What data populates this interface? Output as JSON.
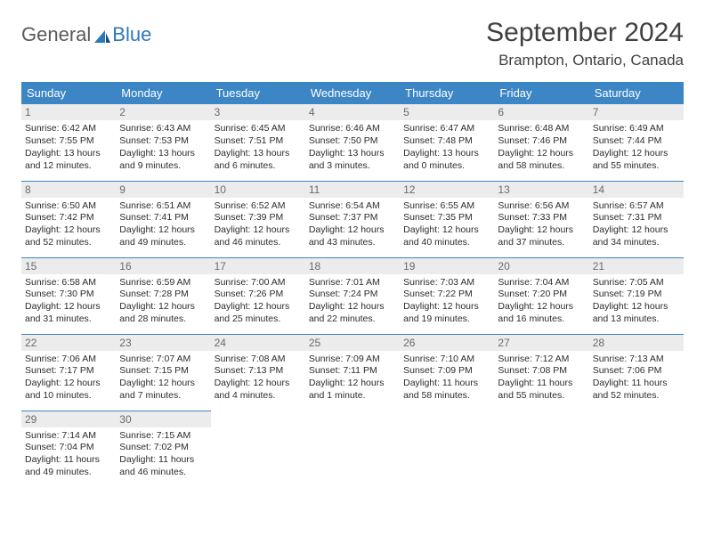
{
  "logo": {
    "text_general": "General",
    "text_blue": "Blue"
  },
  "title": "September 2024",
  "location": "Brampton, Ontario, Canada",
  "colors": {
    "header_bg": "#3d86c6",
    "header_text": "#ffffff",
    "daynum_bg": "#ececec",
    "logo_blue": "#2d78b8",
    "border": "#3d86c6"
  },
  "weekdays": [
    "Sunday",
    "Monday",
    "Tuesday",
    "Wednesday",
    "Thursday",
    "Friday",
    "Saturday"
  ],
  "weeks": [
    [
      {
        "day": "1",
        "sunrise": "Sunrise: 6:42 AM",
        "sunset": "Sunset: 7:55 PM",
        "daylight1": "Daylight: 13 hours",
        "daylight2": "and 12 minutes."
      },
      {
        "day": "2",
        "sunrise": "Sunrise: 6:43 AM",
        "sunset": "Sunset: 7:53 PM",
        "daylight1": "Daylight: 13 hours",
        "daylight2": "and 9 minutes."
      },
      {
        "day": "3",
        "sunrise": "Sunrise: 6:45 AM",
        "sunset": "Sunset: 7:51 PM",
        "daylight1": "Daylight: 13 hours",
        "daylight2": "and 6 minutes."
      },
      {
        "day": "4",
        "sunrise": "Sunrise: 6:46 AM",
        "sunset": "Sunset: 7:50 PM",
        "daylight1": "Daylight: 13 hours",
        "daylight2": "and 3 minutes."
      },
      {
        "day": "5",
        "sunrise": "Sunrise: 6:47 AM",
        "sunset": "Sunset: 7:48 PM",
        "daylight1": "Daylight: 13 hours",
        "daylight2": "and 0 minutes."
      },
      {
        "day": "6",
        "sunrise": "Sunrise: 6:48 AM",
        "sunset": "Sunset: 7:46 PM",
        "daylight1": "Daylight: 12 hours",
        "daylight2": "and 58 minutes."
      },
      {
        "day": "7",
        "sunrise": "Sunrise: 6:49 AM",
        "sunset": "Sunset: 7:44 PM",
        "daylight1": "Daylight: 12 hours",
        "daylight2": "and 55 minutes."
      }
    ],
    [
      {
        "day": "8",
        "sunrise": "Sunrise: 6:50 AM",
        "sunset": "Sunset: 7:42 PM",
        "daylight1": "Daylight: 12 hours",
        "daylight2": "and 52 minutes."
      },
      {
        "day": "9",
        "sunrise": "Sunrise: 6:51 AM",
        "sunset": "Sunset: 7:41 PM",
        "daylight1": "Daylight: 12 hours",
        "daylight2": "and 49 minutes."
      },
      {
        "day": "10",
        "sunrise": "Sunrise: 6:52 AM",
        "sunset": "Sunset: 7:39 PM",
        "daylight1": "Daylight: 12 hours",
        "daylight2": "and 46 minutes."
      },
      {
        "day": "11",
        "sunrise": "Sunrise: 6:54 AM",
        "sunset": "Sunset: 7:37 PM",
        "daylight1": "Daylight: 12 hours",
        "daylight2": "and 43 minutes."
      },
      {
        "day": "12",
        "sunrise": "Sunrise: 6:55 AM",
        "sunset": "Sunset: 7:35 PM",
        "daylight1": "Daylight: 12 hours",
        "daylight2": "and 40 minutes."
      },
      {
        "day": "13",
        "sunrise": "Sunrise: 6:56 AM",
        "sunset": "Sunset: 7:33 PM",
        "daylight1": "Daylight: 12 hours",
        "daylight2": "and 37 minutes."
      },
      {
        "day": "14",
        "sunrise": "Sunrise: 6:57 AM",
        "sunset": "Sunset: 7:31 PM",
        "daylight1": "Daylight: 12 hours",
        "daylight2": "and 34 minutes."
      }
    ],
    [
      {
        "day": "15",
        "sunrise": "Sunrise: 6:58 AM",
        "sunset": "Sunset: 7:30 PM",
        "daylight1": "Daylight: 12 hours",
        "daylight2": "and 31 minutes."
      },
      {
        "day": "16",
        "sunrise": "Sunrise: 6:59 AM",
        "sunset": "Sunset: 7:28 PM",
        "daylight1": "Daylight: 12 hours",
        "daylight2": "and 28 minutes."
      },
      {
        "day": "17",
        "sunrise": "Sunrise: 7:00 AM",
        "sunset": "Sunset: 7:26 PM",
        "daylight1": "Daylight: 12 hours",
        "daylight2": "and 25 minutes."
      },
      {
        "day": "18",
        "sunrise": "Sunrise: 7:01 AM",
        "sunset": "Sunset: 7:24 PM",
        "daylight1": "Daylight: 12 hours",
        "daylight2": "and 22 minutes."
      },
      {
        "day": "19",
        "sunrise": "Sunrise: 7:03 AM",
        "sunset": "Sunset: 7:22 PM",
        "daylight1": "Daylight: 12 hours",
        "daylight2": "and 19 minutes."
      },
      {
        "day": "20",
        "sunrise": "Sunrise: 7:04 AM",
        "sunset": "Sunset: 7:20 PM",
        "daylight1": "Daylight: 12 hours",
        "daylight2": "and 16 minutes."
      },
      {
        "day": "21",
        "sunrise": "Sunrise: 7:05 AM",
        "sunset": "Sunset: 7:19 PM",
        "daylight1": "Daylight: 12 hours",
        "daylight2": "and 13 minutes."
      }
    ],
    [
      {
        "day": "22",
        "sunrise": "Sunrise: 7:06 AM",
        "sunset": "Sunset: 7:17 PM",
        "daylight1": "Daylight: 12 hours",
        "daylight2": "and 10 minutes."
      },
      {
        "day": "23",
        "sunrise": "Sunrise: 7:07 AM",
        "sunset": "Sunset: 7:15 PM",
        "daylight1": "Daylight: 12 hours",
        "daylight2": "and 7 minutes."
      },
      {
        "day": "24",
        "sunrise": "Sunrise: 7:08 AM",
        "sunset": "Sunset: 7:13 PM",
        "daylight1": "Daylight: 12 hours",
        "daylight2": "and 4 minutes."
      },
      {
        "day": "25",
        "sunrise": "Sunrise: 7:09 AM",
        "sunset": "Sunset: 7:11 PM",
        "daylight1": "Daylight: 12 hours",
        "daylight2": "and 1 minute."
      },
      {
        "day": "26",
        "sunrise": "Sunrise: 7:10 AM",
        "sunset": "Sunset: 7:09 PM",
        "daylight1": "Daylight: 11 hours",
        "daylight2": "and 58 minutes."
      },
      {
        "day": "27",
        "sunrise": "Sunrise: 7:12 AM",
        "sunset": "Sunset: 7:08 PM",
        "daylight1": "Daylight: 11 hours",
        "daylight2": "and 55 minutes."
      },
      {
        "day": "28",
        "sunrise": "Sunrise: 7:13 AM",
        "sunset": "Sunset: 7:06 PM",
        "daylight1": "Daylight: 11 hours",
        "daylight2": "and 52 minutes."
      }
    ],
    [
      {
        "day": "29",
        "sunrise": "Sunrise: 7:14 AM",
        "sunset": "Sunset: 7:04 PM",
        "daylight1": "Daylight: 11 hours",
        "daylight2": "and 49 minutes."
      },
      {
        "day": "30",
        "sunrise": "Sunrise: 7:15 AM",
        "sunset": "Sunset: 7:02 PM",
        "daylight1": "Daylight: 11 hours",
        "daylight2": "and 46 minutes."
      },
      null,
      null,
      null,
      null,
      null
    ]
  ]
}
